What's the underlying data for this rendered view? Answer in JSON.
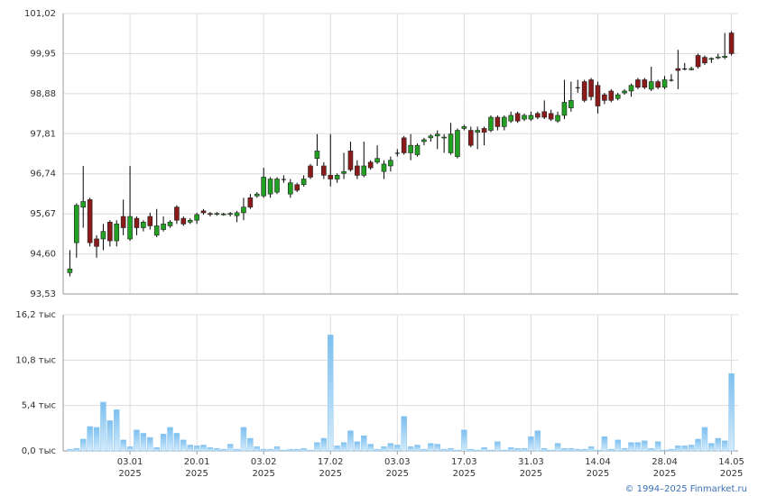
{
  "chart_data": [
    {
      "type": "candlestick",
      "up_color": "#22a022",
      "down_color": "#8b1a1a",
      "doji_color": "#000000",
      "x": [
        0,
        1,
        2,
        3,
        4,
        5,
        6,
        7,
        8,
        9,
        10,
        11,
        12,
        13,
        14,
        15,
        16,
        17,
        18,
        19,
        20,
        21,
        22,
        23,
        24,
        25,
        26,
        27,
        28,
        29,
        30,
        31,
        32,
        33,
        34,
        35,
        36,
        37,
        38,
        39,
        40,
        41,
        42,
        43,
        44,
        45,
        46,
        47,
        48,
        49,
        50,
        51,
        52,
        53,
        54,
        55,
        56,
        57,
        58,
        59,
        60,
        61,
        62,
        63,
        64,
        65,
        66,
        67,
        68,
        69,
        70,
        71,
        72,
        73,
        74,
        75,
        76,
        77,
        78,
        79,
        80,
        81,
        82,
        83,
        84,
        85,
        86,
        87,
        88,
        89,
        90,
        91,
        92,
        93,
        94,
        95,
        96,
        97,
        98,
        99
      ],
      "open": [
        94.1,
        94.9,
        95.85,
        96.05,
        95.0,
        95.0,
        95.45,
        94.95,
        95.6,
        95.0,
        95.55,
        95.3,
        95.6,
        95.1,
        95.25,
        95.35,
        95.85,
        95.55,
        95.45,
        95.5,
        95.75,
        95.68,
        95.67,
        95.66,
        95.66,
        95.62,
        95.7,
        96.1,
        96.15,
        96.15,
        96.2,
        96.25,
        96.6,
        96.2,
        96.45,
        96.45,
        96.95,
        97.15,
        96.95,
        96.7,
        96.6,
        96.75,
        97.35,
        96.95,
        96.7,
        97.05,
        97.05,
        96.8,
        96.95,
        97.3,
        97.7,
        97.3,
        97.25,
        97.6,
        97.7,
        97.75,
        97.7,
        97.3,
        97.2,
        97.95,
        97.9,
        97.85,
        97.95,
        97.9,
        98.25,
        98.0,
        98.15,
        98.35,
        98.2,
        98.2,
        98.35,
        98.4,
        98.35,
        98.15,
        98.3,
        98.5,
        99.05,
        99.2,
        99.25,
        99.1,
        98.85,
        98.95,
        98.75,
        98.9,
        98.95,
        99.25,
        99.25,
        99.0,
        99.2,
        99.05,
        99.25,
        99.55,
        99.55,
        99.52,
        99.9,
        99.85,
        99.8,
        99.85,
        99.85,
        100.5
      ],
      "high": [
        94.7,
        95.95,
        96.95,
        96.1,
        95.1,
        95.4,
        95.5,
        95.5,
        96.05,
        96.95,
        95.6,
        95.5,
        95.7,
        95.8,
        95.6,
        95.5,
        95.9,
        95.6,
        95.55,
        95.7,
        95.8,
        95.72,
        95.72,
        95.7,
        95.72,
        95.75,
        96.1,
        96.2,
        96.25,
        96.9,
        96.65,
        96.65,
        96.7,
        96.6,
        96.5,
        96.7,
        97.0,
        97.8,
        97.05,
        97.8,
        96.75,
        97.3,
        97.6,
        97.1,
        97.6,
        97.1,
        97.5,
        97.1,
        97.2,
        97.4,
        97.75,
        97.8,
        97.55,
        97.7,
        97.8,
        97.9,
        97.8,
        98.1,
        97.95,
        98.05,
        98.0,
        98.0,
        98.0,
        98.3,
        98.3,
        98.3,
        98.4,
        98.4,
        98.35,
        98.4,
        98.4,
        98.7,
        98.45,
        98.4,
        99.25,
        99.2,
        99.25,
        99.25,
        99.3,
        99.2,
        98.9,
        99.0,
        98.9,
        99.0,
        99.15,
        99.3,
        99.3,
        99.6,
        99.25,
        99.35,
        99.4,
        100.05,
        99.7,
        99.6,
        99.95,
        99.9,
        99.85,
        99.95,
        100.5,
        100.55
      ],
      "low": [
        94.0,
        94.5,
        95.3,
        94.8,
        94.5,
        94.7,
        94.8,
        94.8,
        95.1,
        94.95,
        95.1,
        95.2,
        95.25,
        95.05,
        95.2,
        95.3,
        95.4,
        95.35,
        95.4,
        95.4,
        95.65,
        95.6,
        95.62,
        95.62,
        95.6,
        95.45,
        95.5,
        95.8,
        96.1,
        96.1,
        96.1,
        96.2,
        96.5,
        96.1,
        96.25,
        96.4,
        96.6,
        96.95,
        96.6,
        96.4,
        96.5,
        96.6,
        96.8,
        96.6,
        96.65,
        96.85,
        97.0,
        96.6,
        96.8,
        97.2,
        97.25,
        97.1,
        97.2,
        97.5,
        97.6,
        97.4,
        97.3,
        97.25,
        97.15,
        97.9,
        97.45,
        97.4,
        97.5,
        97.85,
        97.9,
        97.9,
        98.1,
        98.1,
        98.15,
        98.15,
        98.2,
        98.2,
        98.15,
        98.1,
        98.2,
        98.4,
        98.9,
        98.65,
        98.7,
        98.35,
        98.6,
        98.65,
        98.7,
        98.85,
        98.8,
        99.0,
        99.0,
        98.95,
        99.0,
        99.0,
        99.2,
        99.0,
        99.5,
        99.5,
        99.55,
        99.65,
        99.7,
        99.8,
        99.8,
        99.9
      ],
      "close": [
        94.2,
        95.9,
        96.0,
        94.9,
        94.8,
        95.2,
        94.95,
        95.4,
        95.3,
        95.6,
        95.3,
        95.45,
        95.35,
        95.35,
        95.4,
        95.45,
        95.5,
        95.4,
        95.5,
        95.65,
        95.7,
        95.67,
        95.68,
        95.67,
        95.68,
        95.7,
        95.85,
        95.85,
        96.2,
        96.65,
        96.6,
        96.6,
        96.6,
        96.5,
        96.3,
        96.6,
        96.65,
        97.35,
        96.7,
        96.6,
        96.7,
        96.8,
        96.85,
        96.7,
        96.95,
        96.9,
        97.15,
        97.0,
        97.1,
        97.3,
        97.3,
        97.5,
        97.5,
        97.65,
        97.75,
        97.8,
        97.72,
        97.8,
        97.9,
        98.0,
        97.5,
        97.9,
        97.85,
        98.25,
        98.0,
        98.25,
        98.3,
        98.15,
        98.3,
        98.3,
        98.25,
        98.25,
        98.2,
        98.3,
        98.65,
        98.7,
        99.05,
        98.7,
        98.8,
        98.55,
        98.7,
        98.7,
        98.85,
        98.95,
        99.1,
        99.05,
        99.05,
        99.2,
        99.05,
        99.25,
        99.25,
        99.5,
        99.55,
        99.55,
        99.6,
        99.7,
        99.82,
        99.86,
        99.88,
        99.95
      ],
      "ylim": [
        93.53,
        101.02
      ],
      "yticks": [
        {
          "value": 93.53,
          "label": "93,53"
        },
        {
          "value": 94.6,
          "label": "94,60"
        },
        {
          "value": 95.67,
          "label": "95,67"
        },
        {
          "value": 96.74,
          "label": "96,74"
        },
        {
          "value": 97.81,
          "label": "97,81"
        },
        {
          "value": 98.88,
          "label": "98,88"
        },
        {
          "value": 99.95,
          "label": "99,95"
        },
        {
          "value": 101.02,
          "label": "101,02"
        }
      ],
      "grid": true
    },
    {
      "type": "bar",
      "color": "#8fc9f2",
      "x": [
        0,
        1,
        2,
        3,
        4,
        5,
        6,
        7,
        8,
        9,
        10,
        11,
        12,
        13,
        14,
        15,
        16,
        17,
        18,
        19,
        20,
        21,
        22,
        23,
        24,
        25,
        26,
        27,
        28,
        29,
        30,
        31,
        32,
        33,
        34,
        35,
        36,
        37,
        38,
        39,
        40,
        41,
        42,
        43,
        44,
        45,
        46,
        47,
        48,
        49,
        50,
        51,
        52,
        53,
        54,
        55,
        56,
        57,
        58,
        59,
        60,
        61,
        62,
        63,
        64,
        65,
        66,
        67,
        68,
        69,
        70,
        71,
        72,
        73,
        74,
        75,
        76,
        77,
        78,
        79,
        80,
        81,
        82,
        83,
        84,
        85,
        86,
        87,
        88,
        89,
        90,
        91,
        92,
        93,
        94,
        95,
        96,
        97,
        98,
        99
      ],
      "values": [
        0.2,
        0.3,
        1.4,
        2.9,
        2.8,
        5.8,
        3.6,
        4.9,
        1.3,
        0.5,
        2.5,
        2.1,
        1.6,
        0.4,
        2.0,
        2.8,
        2.1,
        1.3,
        0.7,
        0.6,
        0.7,
        0.4,
        0.3,
        0.2,
        0.8,
        0.2,
        2.8,
        1.5,
        0.5,
        0.2,
        0.2,
        0.5,
        0.1,
        0.2,
        0.2,
        0.3,
        0.1,
        1.0,
        1.5,
        13.8,
        0.6,
        1.0,
        2.4,
        1.1,
        1.8,
        0.8,
        0.2,
        0.5,
        0.9,
        0.7,
        4.1,
        0.5,
        0.7,
        0.2,
        0.9,
        0.8,
        0.2,
        0.3,
        0.1,
        2.5,
        0.2,
        0.1,
        0.4,
        0.1,
        1.1,
        0.1,
        0.4,
        0.3,
        0.3,
        1.7,
        2.4,
        0.3,
        0.1,
        0.9,
        0.3,
        0.3,
        0.2,
        0.2,
        0.5,
        0.1,
        1.7,
        0.2,
        1.3,
        0.3,
        1.0,
        1.0,
        1.2,
        0.3,
        1.1,
        0.1,
        0.2,
        0.6,
        0.6,
        0.7,
        1.4,
        2.8,
        0.9,
        1.5,
        1.2,
        9.2
      ],
      "xlim": [
        -1,
        100
      ],
      "xticks": [
        {
          "value": 9,
          "label": "03.01\n2025"
        },
        {
          "value": 19,
          "label": "20.01\n2025"
        },
        {
          "value": 29,
          "label": "03.02\n2025"
        },
        {
          "value": 39,
          "label": "17.02\n2025"
        },
        {
          "value": 49,
          "label": "03.03\n2025"
        },
        {
          "value": 59,
          "label": "17.03\n2025"
        },
        {
          "value": 69,
          "label": "31.03\n2025"
        },
        {
          "value": 79,
          "label": "14.04\n2025"
        },
        {
          "value": 89,
          "label": "28.04\n2025"
        },
        {
          "value": 99,
          "label": "14.05\n2025"
        }
      ],
      "ylim": [
        0,
        16.2
      ],
      "yticks": [
        {
          "value": 0,
          "label": "0,0 тыс"
        },
        {
          "value": 5.4,
          "label": "5,4 тыс"
        },
        {
          "value": 10.8,
          "label": "10,8 тыс"
        },
        {
          "value": 16.2,
          "label": "16,2 тыс"
        }
      ],
      "grid": true
    }
  ],
  "footer": "© 1994–2025 Finmarket.ru"
}
